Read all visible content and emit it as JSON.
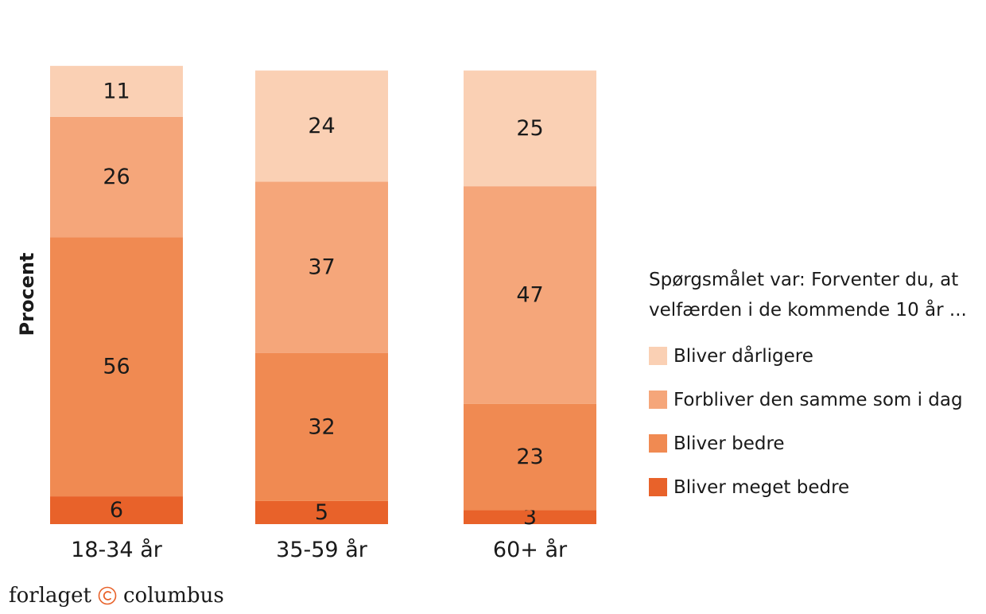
{
  "chart_data": {
    "type": "bar",
    "stacked": true,
    "ylabel": "Procent",
    "categories": [
      "18-34 år",
      "35-59 år",
      "60+ år"
    ],
    "series": [
      {
        "name": "Bliver meget bedre",
        "color": "#e8622a",
        "values": [
          6,
          5,
          3
        ]
      },
      {
        "name": "Bliver bedre",
        "color": "#f08a52",
        "values": [
          56,
          32,
          23
        ]
      },
      {
        "name": "Forbliver den samme som i dag",
        "color": "#f5a67a",
        "values": [
          26,
          37,
          47
        ]
      },
      {
        "name": "Bliver dårligere",
        "color": "#fad0b4",
        "values": [
          11,
          24,
          25
        ]
      }
    ],
    "legend_placement": "right",
    "grid": false
  },
  "legend": {
    "title": "Spørgsmålet var: Forventer du, at velfærden i de kommende 10 år ...",
    "items": [
      {
        "label": "Bliver dårligere",
        "color": "#fad0b4"
      },
      {
        "label": "Forbliver den samme som i dag",
        "color": "#f5a67a"
      },
      {
        "label": "Bliver bedre",
        "color": "#f08a52"
      },
      {
        "label": "Bliver meget bedre",
        "color": "#e8622a"
      }
    ]
  },
  "logo": {
    "left_text": "forlaget",
    "right_text": "columbus",
    "mark_color": "#e8622a"
  }
}
